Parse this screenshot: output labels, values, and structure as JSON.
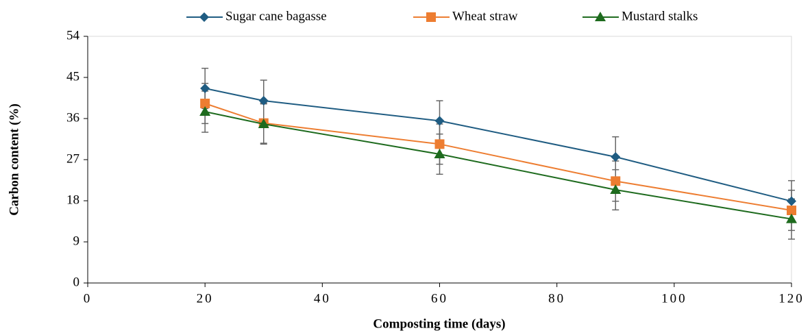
{
  "chart_data": {
    "type": "line",
    "x_label": "Composting time (days)",
    "y_label": "Carbon content (%)",
    "x": [
      20,
      30,
      60,
      90,
      120
    ],
    "series": [
      {
        "name": "Sugar cane bagasse",
        "color": "#1f5c82",
        "marker": "diamond",
        "values": [
          42.6,
          39.9,
          35.5,
          27.6,
          17.9
        ],
        "errors": [
          4.4,
          4.5,
          4.4,
          4.4,
          4.5
        ]
      },
      {
        "name": "Wheat straw",
        "color": "#ed7d31",
        "marker": "square",
        "values": [
          39.3,
          35.0,
          30.4,
          22.3,
          15.9
        ],
        "errors": [
          4.4,
          4.4,
          4.4,
          4.4,
          4.4
        ]
      },
      {
        "name": "Mustard stalks",
        "color": "#1e6b1e",
        "marker": "triangle",
        "values": [
          37.5,
          34.8,
          28.2,
          20.4,
          14.0
        ],
        "errors": [
          4.5,
          4.4,
          4.4,
          4.4,
          4.4
        ]
      }
    ],
    "error_color": "#666666",
    "xlim": [
      0,
      120
    ],
    "xticks": [
      0,
      20,
      40,
      60,
      80,
      100,
      120
    ],
    "ylim": [
      0,
      54
    ],
    "yticks": [
      0,
      9,
      18,
      27,
      36,
      45,
      54
    ],
    "legend": "top"
  }
}
